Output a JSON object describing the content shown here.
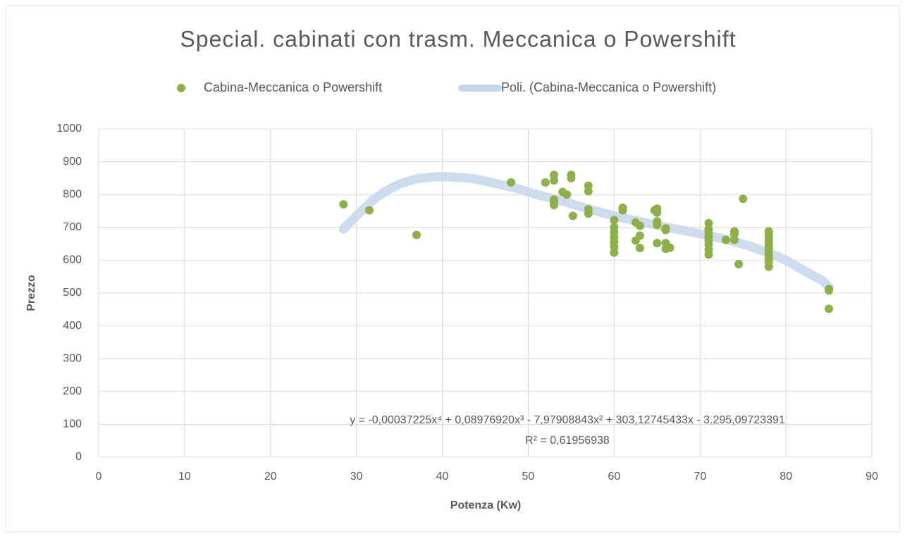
{
  "chart_data": {
    "type": "scatter",
    "title": "Special. cabinati con trasm. Meccanica o Powershift",
    "x_label": "Potenza (Kw)",
    "y_label": "Prezzo",
    "xlim": [
      0,
      90
    ],
    "xticks": [
      0,
      10,
      20,
      30,
      40,
      50,
      60,
      70,
      80,
      90
    ],
    "ylim": [
      0,
      1000
    ],
    "yticks": [
      0,
      100,
      200,
      300,
      400,
      500,
      600,
      700,
      800,
      900,
      1000
    ],
    "grid": true,
    "legend": "top",
    "annotations": [
      "y = -0,00037225x⁴ + 0,08976920x³ - 7,97908843x² + 303,12745433x - 3.295,09723391",
      "R² = 0,61956938"
    ],
    "series": [
      {
        "name": "Cabina-Meccanica o Powershift",
        "type": "scatter",
        "color": "#8db04a",
        "x": [
          28.5,
          31.5,
          37,
          48,
          52,
          53,
          53,
          53,
          53,
          53,
          54,
          54.5,
          55,
          55,
          55.2,
          57,
          57,
          57,
          57,
          60,
          60,
          60,
          60,
          60,
          60,
          60,
          61,
          61,
          62.5,
          62.5,
          63,
          63,
          63,
          64.7,
          65,
          65,
          65,
          65,
          65,
          66,
          66,
          66,
          66,
          66.5,
          71,
          71,
          71,
          71,
          71,
          71,
          71,
          71,
          73,
          74,
          74,
          74,
          74.5,
          75,
          78,
          78,
          78,
          78,
          78,
          78,
          78,
          78,
          78,
          78,
          78,
          85,
          85,
          85
        ],
        "values": [
          770,
          752,
          677,
          837,
          837,
          860,
          843,
          785,
          778,
          768,
          808,
          800,
          860,
          850,
          735,
          827,
          810,
          755,
          742,
          722,
          700,
          685,
          670,
          655,
          640,
          623,
          760,
          752,
          715,
          660,
          705,
          675,
          637,
          752,
          757,
          745,
          718,
          708,
          652,
          697,
          692,
          652,
          635,
          638,
          713,
          695,
          685,
          672,
          660,
          648,
          632,
          617,
          662,
          688,
          680,
          662,
          588,
          787,
          688,
          678,
          668,
          658,
          648,
          638,
          628,
          615,
          605,
          595,
          580,
          512,
          508,
          452
        ]
      },
      {
        "name": "Poli. (Cabina-Meccanica o Powershift)",
        "type": "line",
        "color": "#c5d6ea",
        "x": [
          28.5,
          30,
          32,
          33.5,
          35,
          37,
          38.7,
          40,
          42,
          43.7,
          46,
          48.8,
          51,
          54,
          56.5,
          59,
          61.5,
          64,
          66.5,
          69,
          71.5,
          74,
          76,
          78,
          80,
          82,
          84.3,
          85
        ],
        "values": [
          695,
          735,
          785,
          812,
          832,
          848,
          853,
          855,
          852,
          848,
          835,
          818,
          800,
          780,
          760,
          742,
          726,
          712,
          698,
          686,
          672,
          657,
          641,
          622,
          600,
          570,
          537,
          518
        ]
      }
    ]
  }
}
